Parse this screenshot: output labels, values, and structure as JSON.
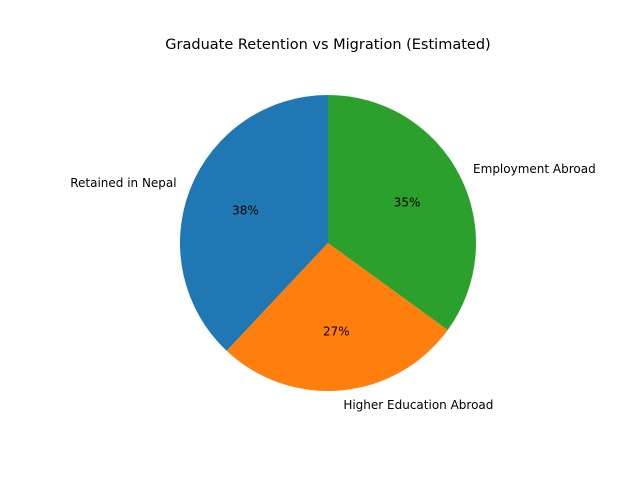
{
  "chart_data": {
    "type": "pie",
    "title": "Graduate Retention vs Migration (Estimated)",
    "categories": [
      "Retained in Nepal",
      "Higher Education Abroad",
      "Employment Abroad"
    ],
    "values": [
      38,
      27,
      35
    ],
    "value_labels": [
      "38%",
      "27%",
      "35%"
    ],
    "colors": [
      "#1f77b4",
      "#ff7f0e",
      "#2ca02c"
    ],
    "start_angle_deg": 90,
    "direction": "counterclockwise",
    "legend": "none"
  }
}
